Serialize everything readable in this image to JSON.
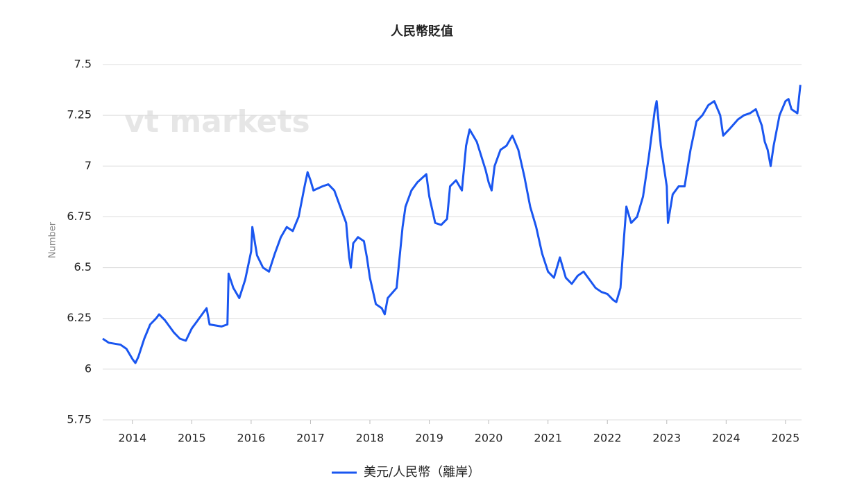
{
  "chart_data": {
    "type": "line",
    "title": "人民幣貶值",
    "ylabel": "Number",
    "watermark": "vt markets",
    "x": [
      2013.5,
      2013.6,
      2013.8,
      2013.9,
      2014.0,
      2014.05,
      2014.1,
      2014.2,
      2014.3,
      2014.4,
      2014.45,
      2014.55,
      2014.7,
      2014.8,
      2014.9,
      2015.0,
      2015.1,
      2015.2,
      2015.25,
      2015.3,
      2015.5,
      2015.6,
      2015.62,
      2015.7,
      2015.8,
      2015.9,
      2016.0,
      2016.02,
      2016.1,
      2016.2,
      2016.3,
      2016.4,
      2016.5,
      2016.6,
      2016.7,
      2016.8,
      2016.9,
      2016.95,
      2017.0,
      2017.05,
      2017.2,
      2017.3,
      2017.4,
      2017.5,
      2017.6,
      2017.65,
      2017.68,
      2017.72,
      2017.8,
      2017.9,
      2017.95,
      2018.0,
      2018.1,
      2018.2,
      2018.25,
      2018.3,
      2018.45,
      2018.55,
      2018.6,
      2018.7,
      2018.8,
      2018.95,
      2019.0,
      2019.1,
      2019.2,
      2019.3,
      2019.35,
      2019.45,
      2019.55,
      2019.62,
      2019.68,
      2019.8,
      2019.95,
      2020.0,
      2020.05,
      2020.1,
      2020.2,
      2020.3,
      2020.4,
      2020.5,
      2020.6,
      2020.7,
      2020.8,
      2020.9,
      2021.0,
      2021.1,
      2021.2,
      2021.3,
      2021.4,
      2021.5,
      2021.6,
      2021.7,
      2021.8,
      2021.9,
      2022.0,
      2022.1,
      2022.15,
      2022.22,
      2022.28,
      2022.32,
      2022.4,
      2022.5,
      2022.6,
      2022.7,
      2022.8,
      2022.83,
      2022.9,
      2023.0,
      2023.02,
      2023.1,
      2023.2,
      2023.3,
      2023.4,
      2023.5,
      2023.6,
      2023.7,
      2023.8,
      2023.9,
      2023.95,
      2024.05,
      2024.2,
      2024.3,
      2024.4,
      2024.5,
      2024.6,
      2024.65,
      2024.7,
      2024.75,
      2024.8,
      2024.9,
      2025.0,
      2025.05,
      2025.1,
      2025.2,
      2025.25
    ],
    "series": [
      {
        "name": "美元/人民幣（離岸）",
        "color": "#1a56f0",
        "values": [
          6.15,
          6.13,
          6.12,
          6.1,
          6.05,
          6.03,
          6.06,
          6.15,
          6.22,
          6.25,
          6.27,
          6.24,
          6.18,
          6.15,
          6.14,
          6.2,
          6.24,
          6.28,
          6.3,
          6.22,
          6.21,
          6.22,
          6.47,
          6.4,
          6.35,
          6.44,
          6.58,
          6.7,
          6.56,
          6.5,
          6.48,
          6.57,
          6.65,
          6.7,
          6.68,
          6.75,
          6.9,
          6.97,
          6.93,
          6.88,
          6.9,
          6.91,
          6.88,
          6.8,
          6.72,
          6.55,
          6.5,
          6.62,
          6.65,
          6.63,
          6.55,
          6.45,
          6.32,
          6.3,
          6.27,
          6.35,
          6.4,
          6.7,
          6.8,
          6.88,
          6.92,
          6.96,
          6.85,
          6.72,
          6.71,
          6.74,
          6.9,
          6.93,
          6.88,
          7.1,
          7.18,
          7.12,
          6.98,
          6.92,
          6.88,
          7.0,
          7.08,
          7.1,
          7.15,
          7.08,
          6.95,
          6.8,
          6.7,
          6.57,
          6.48,
          6.45,
          6.55,
          6.45,
          6.42,
          6.46,
          6.48,
          6.44,
          6.4,
          6.38,
          6.37,
          6.34,
          6.33,
          6.4,
          6.65,
          6.8,
          6.72,
          6.75,
          6.85,
          7.05,
          7.28,
          7.32,
          7.1,
          6.9,
          6.72,
          6.86,
          6.9,
          6.9,
          7.08,
          7.22,
          7.25,
          7.3,
          7.32,
          7.25,
          7.15,
          7.18,
          7.23,
          7.25,
          7.26,
          7.28,
          7.2,
          7.12,
          7.08,
          7.0,
          7.1,
          7.25,
          7.32,
          7.33,
          7.28,
          7.26,
          7.4
        ]
      }
    ],
    "xlim": [
      2013.5,
      2025.27
    ],
    "xticks": [
      2014,
      2015,
      2016,
      2017,
      2018,
      2019,
      2020,
      2021,
      2022,
      2023,
      2024,
      2025
    ],
    "ylim": [
      5.75,
      7.5
    ],
    "yticks": [
      5.75,
      6,
      6.25,
      6.5,
      6.75,
      7,
      7.25,
      7.5
    ],
    "grid": true,
    "legend": "bottom"
  }
}
